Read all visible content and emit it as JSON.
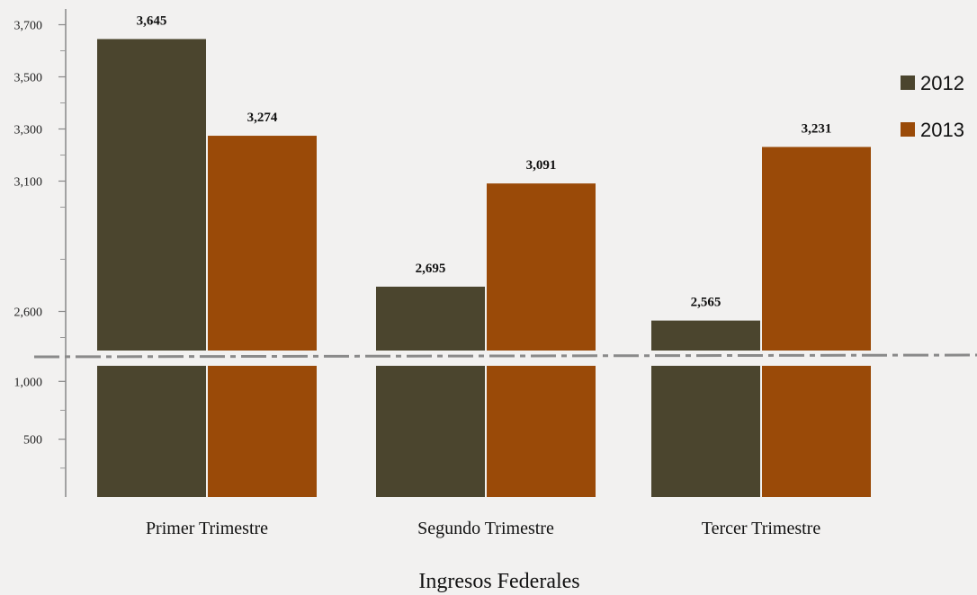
{
  "chart_data": {
    "type": "bar",
    "title": "",
    "xlabel": "Ingresos Federales",
    "ylabel": "",
    "categories": [
      "Primer Trimestre",
      "Segundo Trimestre",
      "Tercer Trimestre"
    ],
    "series": [
      {
        "name": "2012",
        "values": [
          3645,
          2695,
          2565
        ],
        "color": "#4b452e",
        "labels": [
          "3,645",
          "2,695",
          "2,565"
        ]
      },
      {
        "name": "2013",
        "values": [
          3274,
          3091,
          3231
        ],
        "color": "#9a4a08",
        "labels": [
          "3,274",
          "3,091",
          "3,231"
        ]
      }
    ],
    "axis_break": true,
    "upper_ylim": [
      2450,
      3750
    ],
    "lower_ylim": [
      0,
      1150
    ],
    "upper_ticks": [
      {
        "value": 3700,
        "label": "3,700"
      },
      {
        "value": 3500,
        "label": "3,500"
      },
      {
        "value": 3300,
        "label": "3,300"
      },
      {
        "value": 3100,
        "label": "3,100"
      },
      {
        "value": 2600,
        "label": "2,600"
      }
    ],
    "lower_ticks": [
      {
        "value": 1000,
        "label": "1,000"
      },
      {
        "value": 500,
        "label": "500"
      }
    ],
    "legend_position": "top-right",
    "grid": false
  }
}
